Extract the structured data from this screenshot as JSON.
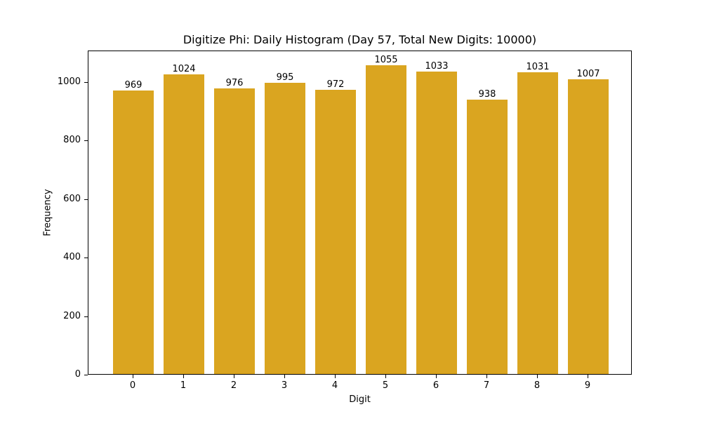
{
  "chart_data": {
    "type": "bar",
    "title": "Digitize Phi: Daily Histogram (Day 57, Total New Digits: 10000)",
    "xlabel": "Digit",
    "ylabel": "Frequency",
    "categories": [
      "0",
      "1",
      "2",
      "3",
      "4",
      "5",
      "6",
      "7",
      "8",
      "9"
    ],
    "values": [
      969,
      1024,
      976,
      995,
      972,
      1055,
      1033,
      938,
      1031,
      1007
    ],
    "bar_labels": [
      "969",
      "1024",
      "976",
      "995",
      "972",
      "1055",
      "1033",
      "938",
      "1031",
      "1007"
    ],
    "ylim": [
      0,
      1108
    ],
    "yticks": [
      "0",
      "200",
      "400",
      "600",
      "800",
      "1000"
    ],
    "bar_color": "#DAA520",
    "grid": false,
    "legend": null
  }
}
